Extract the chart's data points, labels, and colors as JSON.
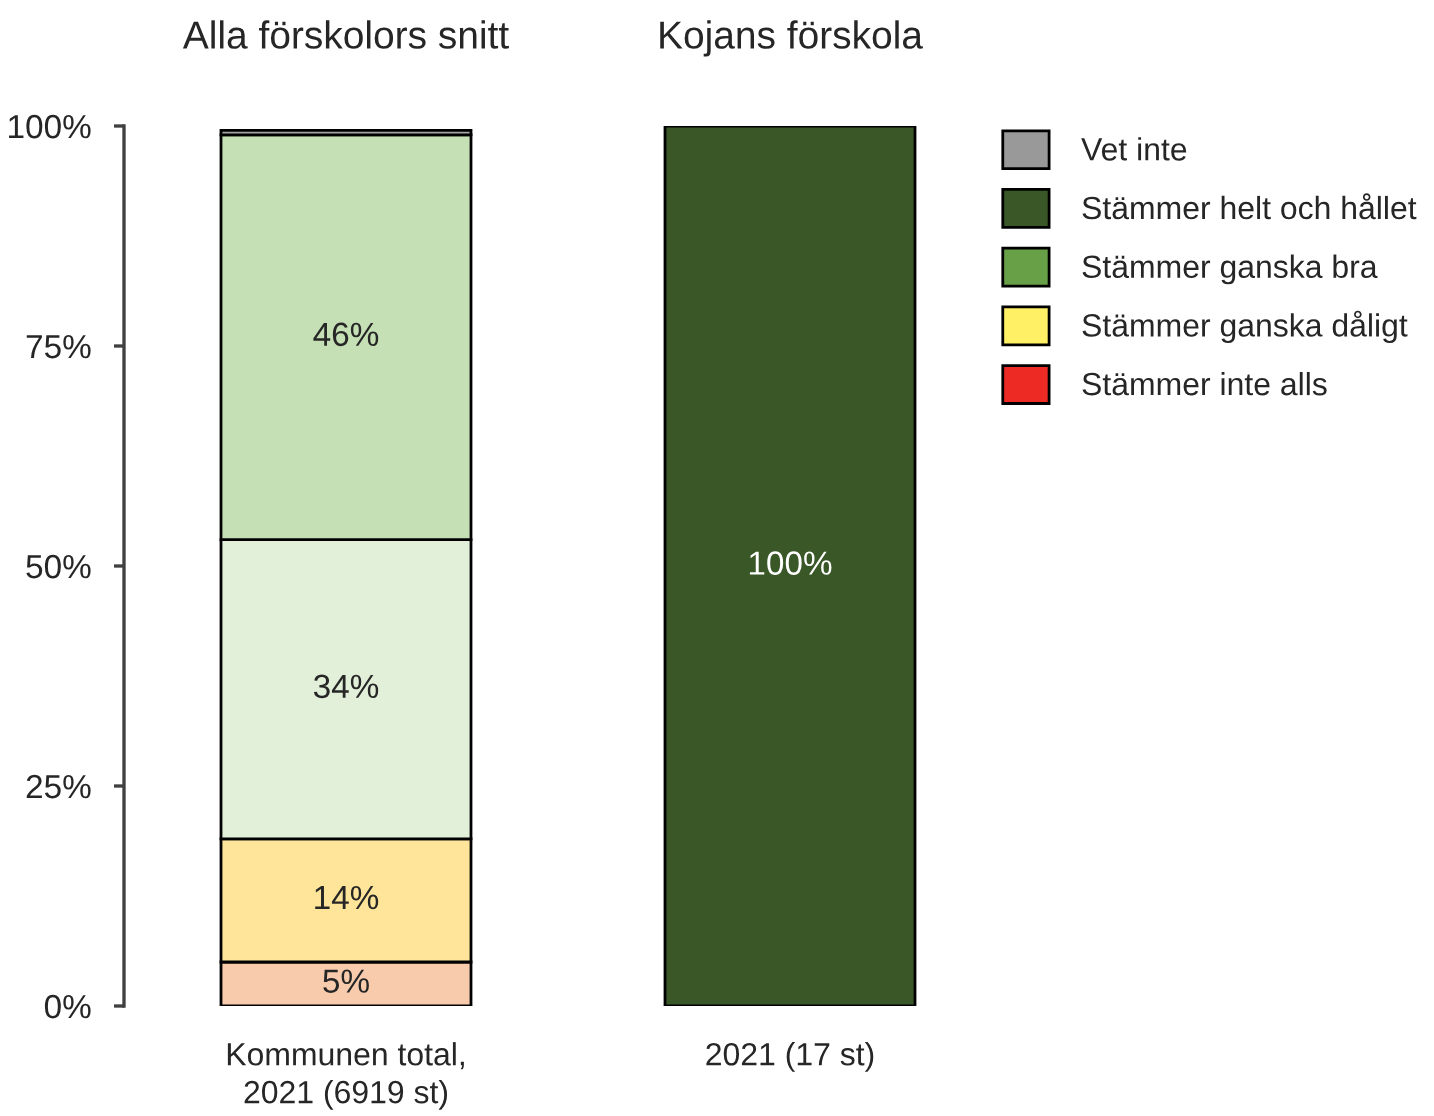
{
  "chart_data": {
    "type": "bar",
    "categories": [
      "Kommunen total,\n2021 (6919 st)",
      "2021 (17 st)"
    ],
    "stacked": true,
    "series": [
      {
        "color": "#f8cbad",
        "values": [
          5,
          null
        ],
        "value_labels": [
          "5%",
          null
        ]
      },
      {
        "color": "#fee599",
        "values": [
          14,
          null
        ],
        "value_labels": [
          "14%",
          null
        ]
      },
      {
        "color": "#e2efd9",
        "values": [
          34,
          null
        ],
        "value_labels": [
          "34%",
          null
        ]
      },
      {
        "color": "#c5e0b4",
        "values": [
          46,
          null
        ],
        "value_labels": [
          "46%",
          null
        ]
      },
      {
        "color": "#a5a5a5",
        "values": [
          0.5,
          null
        ]
      },
      {
        "name": "Stämmer inte alls",
        "color": "#ee2a24",
        "values": [
          null,
          null
        ]
      },
      {
        "name": "Stämmer ganska dåligt",
        "color": "#fff066",
        "values": [
          null,
          null
        ]
      },
      {
        "name": "Stämmer ganska bra",
        "color": "#68a047",
        "values": [
          null,
          null
        ]
      },
      {
        "name": "Stämmer helt och hållet",
        "color": "#3a5727",
        "values": [
          null,
          100
        ],
        "value_labels": [
          null,
          "100%"
        ]
      },
      {
        "name": "Vet inte",
        "color": "#999999",
        "values": [
          null,
          null
        ]
      }
    ],
    "ylim": [
      0,
      100
    ],
    "yticks": [
      {
        "value": 0,
        "label": "0%"
      },
      {
        "value": 25,
        "label": "25%"
      },
      {
        "value": 50,
        "label": "50%"
      },
      {
        "value": 75,
        "label": "75%"
      },
      {
        "value": 100,
        "label": "100%"
      }
    ],
    "legend": "right",
    "annotations": [
      "Alla förskolors snitt",
      "Kojans förskola"
    ]
  }
}
